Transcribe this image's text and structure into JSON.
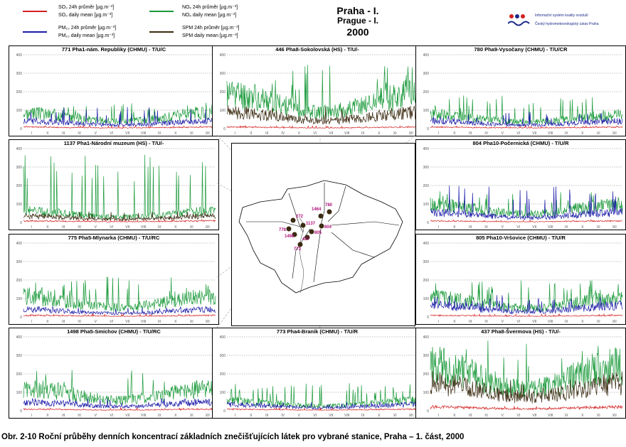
{
  "legend": {
    "items": [
      {
        "label": "SO₂ 24h průměr [µg.m⁻³]",
        "label2": "SO₂ daily mean [µg.m⁻³]",
        "color": "#d42020"
      },
      {
        "label": "PM₁₀ 24h průměr [µg.m⁻³]",
        "label2": "PM₁₀ daily mean [µg.m⁻³]",
        "color": "#1a1aa8"
      },
      {
        "label": "NOₓ 24h průměr [µg.m⁻³]",
        "label2": "NOₓ daily mean [µg.m⁻³]",
        "color": "#1a9a3a"
      },
      {
        "label": "SPM 24h průměr [µg.m⁻³]",
        "label2": "SPM daily mean [µg.m⁻³]",
        "color": "#3a2a10"
      }
    ]
  },
  "header": {
    "title_cz": "Praha - I.",
    "title_en": "Prague - I.",
    "year": "2000",
    "org_line1": "Informační systém kvality ovzduší",
    "org_line2": "Český hydrometeorologický ústav Praha"
  },
  "caption": "Obr. 2-10  Roční průběhy denních koncentrací základních znečišťujících látek pro vybrané stanice, Praha – 1. část, 2000",
  "map": {
    "stations": [
      "780",
      "1464",
      "272",
      "1137",
      "804",
      "778",
      "1498",
      "805",
      "437",
      "773"
    ]
  },
  "chart_data": [
    {
      "type": "line",
      "title": "771 Pha1-nám. Republiky (CHMU)  -  T/U/C",
      "ylim": [
        0,
        400
      ],
      "yticks": [
        "0",
        "100",
        "200",
        "300",
        "400"
      ],
      "months": [
        "I",
        "II",
        "III",
        "IV",
        "V",
        "VI",
        "VII",
        "VIII",
        "IX",
        "X",
        "XI",
        "XII"
      ],
      "series": [
        {
          "name": "NOx",
          "level": 62,
          "spike": 140
        },
        {
          "name": "PM10",
          "level": 30,
          "spike": 120
        },
        {
          "name": "SO2",
          "level": 6,
          "spike": 15
        }
      ]
    },
    {
      "type": "line",
      "title": "446 Pha8-Sokolovská (HS)  -  T/U/-",
      "ylim": [
        0,
        400
      ],
      "yticks": [
        "0",
        "100",
        "200",
        "300",
        "400"
      ],
      "months": [
        "I",
        "II",
        "III",
        "IV",
        "V",
        "VI",
        "VII",
        "VIII",
        "IX",
        "X",
        "XI",
        "XII"
      ],
      "series": [
        {
          "name": "NOx",
          "level": 140,
          "spike": 350
        },
        {
          "name": "SPM",
          "level": 65,
          "spike": 120
        },
        {
          "name": "SO2",
          "level": 6,
          "spike": 15
        }
      ]
    },
    {
      "type": "line",
      "title": "780 Pha9-Vysočany (CHMU)  -  T/U/CR",
      "ylim": [
        0,
        400
      ],
      "yticks": [
        "0",
        "100",
        "200",
        "300",
        "400"
      ],
      "months": [
        "I",
        "II",
        "III",
        "IV",
        "V",
        "VI",
        "VII",
        "VIII",
        "IX",
        "X",
        "XI",
        "XII"
      ],
      "series": [
        {
          "name": "NOx",
          "level": 55,
          "spike": 180
        },
        {
          "name": "PM10",
          "level": 30,
          "spike": 90
        },
        {
          "name": "SO2",
          "level": 6,
          "spike": 15
        }
      ]
    },
    {
      "type": "line",
      "title": "1137 Pha1-Národní muzeum (HS)  -  T/U/-",
      "ylim": [
        0,
        400
      ],
      "yticks": [
        "0",
        "100",
        "200",
        "300",
        "400"
      ],
      "months": [
        "I",
        "II",
        "III",
        "IV",
        "V",
        "VI",
        "VII",
        "VIII",
        "IX",
        "X",
        "XI",
        "XII"
      ],
      "series": [
        {
          "name": "NOx",
          "level": 45,
          "spike": 370
        },
        {
          "name": "SPM",
          "level": 25,
          "spike": 60
        },
        {
          "name": "SO2",
          "level": 6,
          "spike": 15
        }
      ]
    },
    {
      "type": "line",
      "title": "804 Pha10-Počernická (CHMU)  -  T/U/R",
      "ylim": [
        0,
        400
      ],
      "yticks": [
        "0",
        "100",
        "200",
        "300",
        "400"
      ],
      "months": [
        "I",
        "II",
        "III",
        "IV",
        "V",
        "VI",
        "VII",
        "VIII",
        "IX",
        "X",
        "XI",
        "XII"
      ],
      "series": [
        {
          "name": "NOx",
          "level": 70,
          "spike": 170
        },
        {
          "name": "PM10",
          "level": 40,
          "spike": 200
        },
        {
          "name": "SO2",
          "level": 6,
          "spike": 15
        }
      ]
    },
    {
      "type": "line",
      "title": "775 Pha5-Mlynarka (CHMU)  -  T/U/RC",
      "ylim": [
        0,
        400
      ],
      "yticks": [
        "0",
        "100",
        "200",
        "300",
        "400"
      ],
      "months": [
        "I",
        "II",
        "III",
        "IV",
        "V",
        "VI",
        "VII",
        "VIII",
        "IX",
        "X",
        "XI",
        "XII"
      ],
      "series": [
        {
          "name": "NOx",
          "level": 80,
          "spike": 220
        },
        {
          "name": "PM10",
          "level": 30,
          "spike": 60
        },
        {
          "name": "SO2",
          "level": 6,
          "spike": 15
        }
      ]
    },
    {
      "type": "line",
      "title": "805 Pha10-Vršovice (CHMU)  -  T/U/R",
      "ylim": [
        0,
        400
      ],
      "yticks": [
        "0",
        "100",
        "200",
        "300",
        "400"
      ],
      "months": [
        "I",
        "II",
        "III",
        "IV",
        "V",
        "VI",
        "VII",
        "VIII",
        "IX",
        "X",
        "XI",
        "XII"
      ],
      "series": [
        {
          "name": "NOx",
          "level": 75,
          "spike": 200
        },
        {
          "name": "PM10",
          "level": 45,
          "spike": 120
        },
        {
          "name": "SO2",
          "level": 6,
          "spike": 15
        }
      ]
    },
    {
      "type": "line",
      "title": "1498 Pha5-Smíchov (CHMU)  -  T/U/RC",
      "ylim": [
        0,
        400
      ],
      "yticks": [
        "0",
        "100",
        "200",
        "300",
        "400"
      ],
      "months": [
        "I",
        "II",
        "III",
        "IV",
        "V",
        "VI",
        "VII",
        "VIII",
        "IX",
        "X",
        "XI",
        "XII"
      ],
      "series": [
        {
          "name": "NOx",
          "level": 90,
          "spike": 230
        },
        {
          "name": "PM10",
          "level": 35,
          "spike": 70
        },
        {
          "name": "SO2",
          "level": 6,
          "spike": 15
        }
      ]
    },
    {
      "type": "line",
      "title": "773 Pha4-Braník (CHMU)  -  T/U/R",
      "ylim": [
        0,
        400
      ],
      "yticks": [
        "0",
        "100",
        "200",
        "300",
        "400"
      ],
      "months": [
        "I",
        "II",
        "III",
        "IV",
        "V",
        "VI",
        "VII",
        "VIII",
        "IX",
        "X",
        "XI",
        "XII"
      ],
      "series": [
        {
          "name": "NOx",
          "level": 40,
          "spike": 150
        },
        {
          "name": "PM10",
          "level": 25,
          "spike": 50
        },
        {
          "name": "SO2",
          "level": 6,
          "spike": 15
        }
      ]
    },
    {
      "type": "line",
      "title": "437 Pha8-Švermova (HS)  -  T/U/-",
      "ylim": [
        0,
        400
      ],
      "yticks": [
        "0",
        "100",
        "200",
        "300",
        "400"
      ],
      "months": [
        "I",
        "II",
        "III",
        "IV",
        "V",
        "VI",
        "VII",
        "VIII",
        "IX",
        "X",
        "XI",
        "XII"
      ],
      "series": [
        {
          "name": "NOx",
          "level": 180,
          "spike": 380
        },
        {
          "name": "SPM",
          "level": 110,
          "spike": 170
        },
        {
          "name": "SO2",
          "level": 15,
          "spike": 25
        }
      ]
    }
  ]
}
